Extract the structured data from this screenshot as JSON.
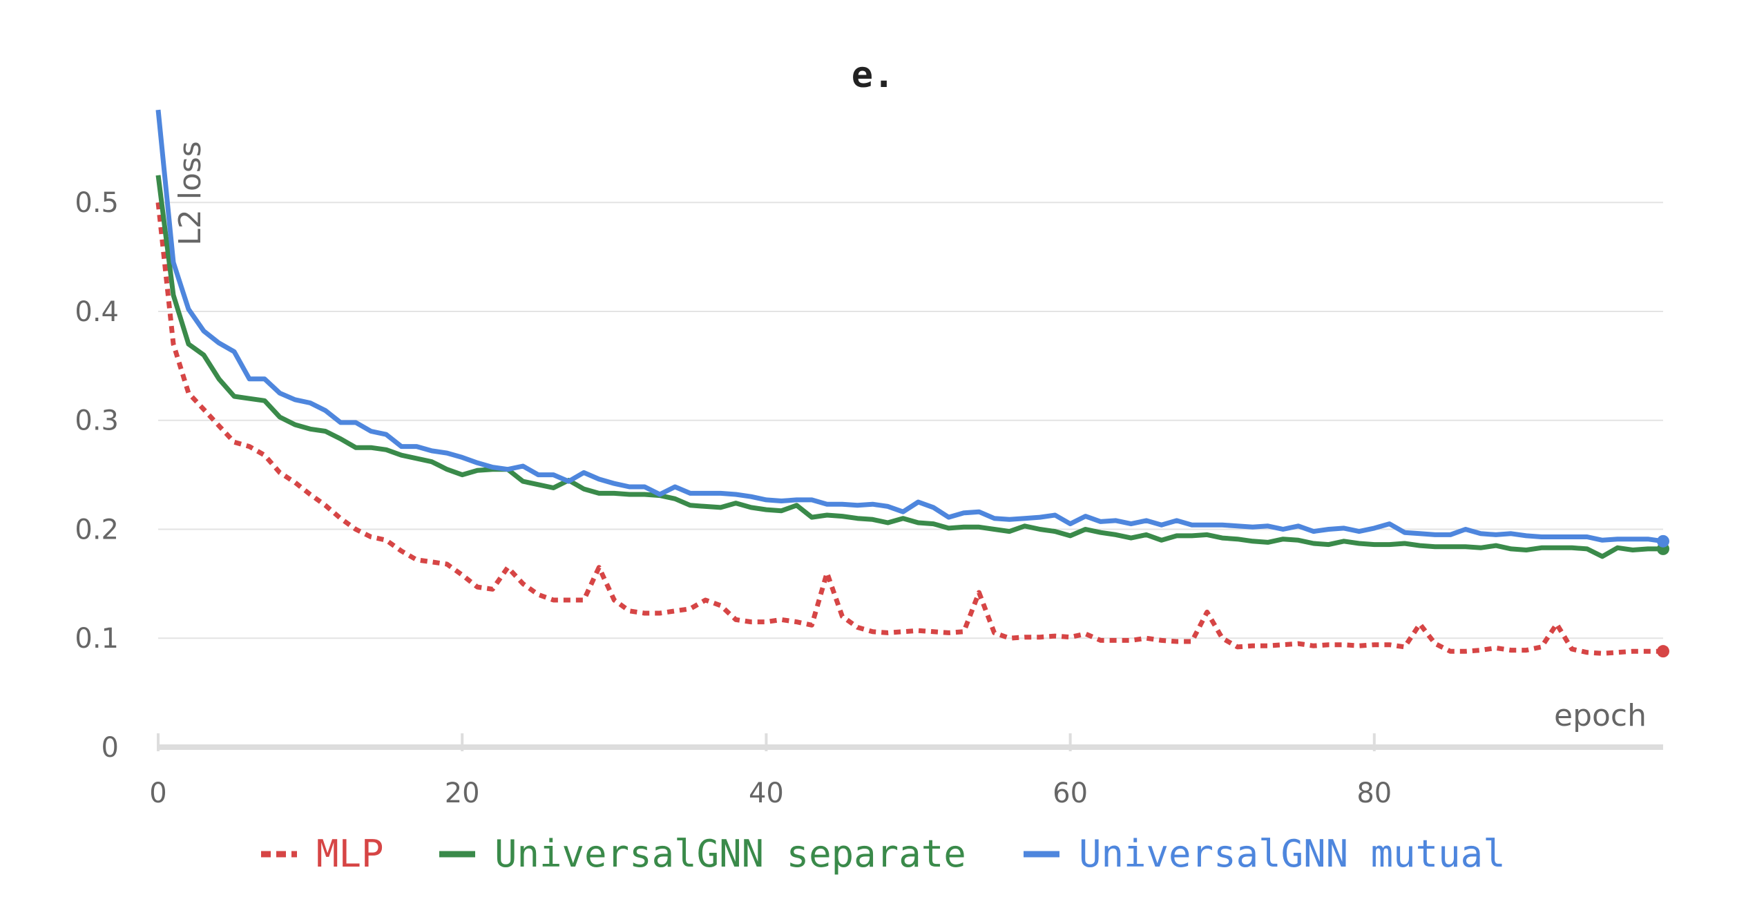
{
  "chart_data": {
    "type": "line",
    "title": "e.",
    "xlabel": "epoch",
    "ylabel": "L2 loss",
    "xlim": [
      0,
      99
    ],
    "ylim": [
      0,
      0.58
    ],
    "xticks": [
      0,
      20,
      40,
      60,
      80
    ],
    "yticks": [
      0,
      0.1,
      0.2,
      0.3,
      0.4,
      0.5
    ],
    "grid": true,
    "legend_position": "bottom",
    "series": [
      {
        "name": "MLP",
        "color": "#d64545",
        "dash": "dotted",
        "values": [
          0.5,
          0.37,
          0.325,
          0.31,
          0.295,
          0.28,
          0.276,
          0.268,
          0.252,
          0.243,
          0.232,
          0.222,
          0.21,
          0.2,
          0.193,
          0.19,
          0.18,
          0.172,
          0.17,
          0.168,
          0.158,
          0.147,
          0.145,
          0.165,
          0.15,
          0.14,
          0.135,
          0.135,
          0.135,
          0.165,
          0.135,
          0.125,
          0.123,
          0.123,
          0.125,
          0.127,
          0.135,
          0.13,
          0.117,
          0.115,
          0.115,
          0.117,
          0.115,
          0.112,
          0.16,
          0.12,
          0.11,
          0.106,
          0.105,
          0.106,
          0.107,
          0.106,
          0.105,
          0.106,
          0.142,
          0.105,
          0.1,
          0.101,
          0.101,
          0.102,
          0.101,
          0.104,
          0.098,
          0.098,
          0.098,
          0.1,
          0.098,
          0.097,
          0.097,
          0.124,
          0.1,
          0.092,
          0.093,
          0.093,
          0.094,
          0.095,
          0.093,
          0.094,
          0.094,
          0.093,
          0.094,
          0.094,
          0.092,
          0.113,
          0.095,
          0.088,
          0.088,
          0.089,
          0.091,
          0.089,
          0.089,
          0.092,
          0.113,
          0.09,
          0.087,
          0.086,
          0.087,
          0.088,
          0.088,
          0.088
        ]
      },
      {
        "name": "UniversalGNN separate",
        "color": "#3a8a4a",
        "dash": "solid",
        "values": [
          0.525,
          0.415,
          0.37,
          0.36,
          0.338,
          0.322,
          0.32,
          0.318,
          0.303,
          0.296,
          0.292,
          0.29,
          0.283,
          0.275,
          0.275,
          0.273,
          0.268,
          0.265,
          0.262,
          0.255,
          0.25,
          0.254,
          0.255,
          0.255,
          0.244,
          0.241,
          0.238,
          0.245,
          0.237,
          0.233,
          0.233,
          0.232,
          0.232,
          0.231,
          0.228,
          0.222,
          0.221,
          0.22,
          0.224,
          0.22,
          0.218,
          0.217,
          0.222,
          0.211,
          0.213,
          0.212,
          0.21,
          0.209,
          0.206,
          0.21,
          0.206,
          0.205,
          0.201,
          0.202,
          0.202,
          0.2,
          0.198,
          0.203,
          0.2,
          0.198,
          0.194,
          0.2,
          0.197,
          0.195,
          0.192,
          0.195,
          0.19,
          0.194,
          0.194,
          0.195,
          0.192,
          0.191,
          0.189,
          0.188,
          0.191,
          0.19,
          0.187,
          0.186,
          0.189,
          0.187,
          0.186,
          0.186,
          0.187,
          0.185,
          0.184,
          0.184,
          0.184,
          0.183,
          0.185,
          0.182,
          0.181,
          0.183,
          0.183,
          0.183,
          0.182,
          0.175,
          0.183,
          0.181,
          0.182,
          0.182
        ]
      },
      {
        "name": "UniversalGNN mutual",
        "color": "#4e86dd",
        "dash": "solid",
        "values": [
          0.585,
          0.445,
          0.402,
          0.382,
          0.371,
          0.363,
          0.338,
          0.338,
          0.325,
          0.319,
          0.316,
          0.309,
          0.298,
          0.298,
          0.29,
          0.287,
          0.276,
          0.276,
          0.272,
          0.27,
          0.266,
          0.261,
          0.257,
          0.255,
          0.258,
          0.25,
          0.25,
          0.244,
          0.252,
          0.246,
          0.242,
          0.239,
          0.239,
          0.232,
          0.239,
          0.233,
          0.233,
          0.233,
          0.232,
          0.23,
          0.227,
          0.226,
          0.227,
          0.227,
          0.223,
          0.223,
          0.222,
          0.223,
          0.221,
          0.216,
          0.225,
          0.22,
          0.211,
          0.215,
          0.216,
          0.21,
          0.209,
          0.21,
          0.211,
          0.213,
          0.205,
          0.212,
          0.207,
          0.208,
          0.205,
          0.208,
          0.204,
          0.208,
          0.204,
          0.204,
          0.204,
          0.203,
          0.202,
          0.203,
          0.2,
          0.203,
          0.198,
          0.2,
          0.201,
          0.198,
          0.201,
          0.205,
          0.197,
          0.196,
          0.195,
          0.195,
          0.2,
          0.196,
          0.195,
          0.196,
          0.194,
          0.193,
          0.193,
          0.193,
          0.193,
          0.19,
          0.191,
          0.191,
          0.191,
          0.189
        ]
      }
    ]
  }
}
